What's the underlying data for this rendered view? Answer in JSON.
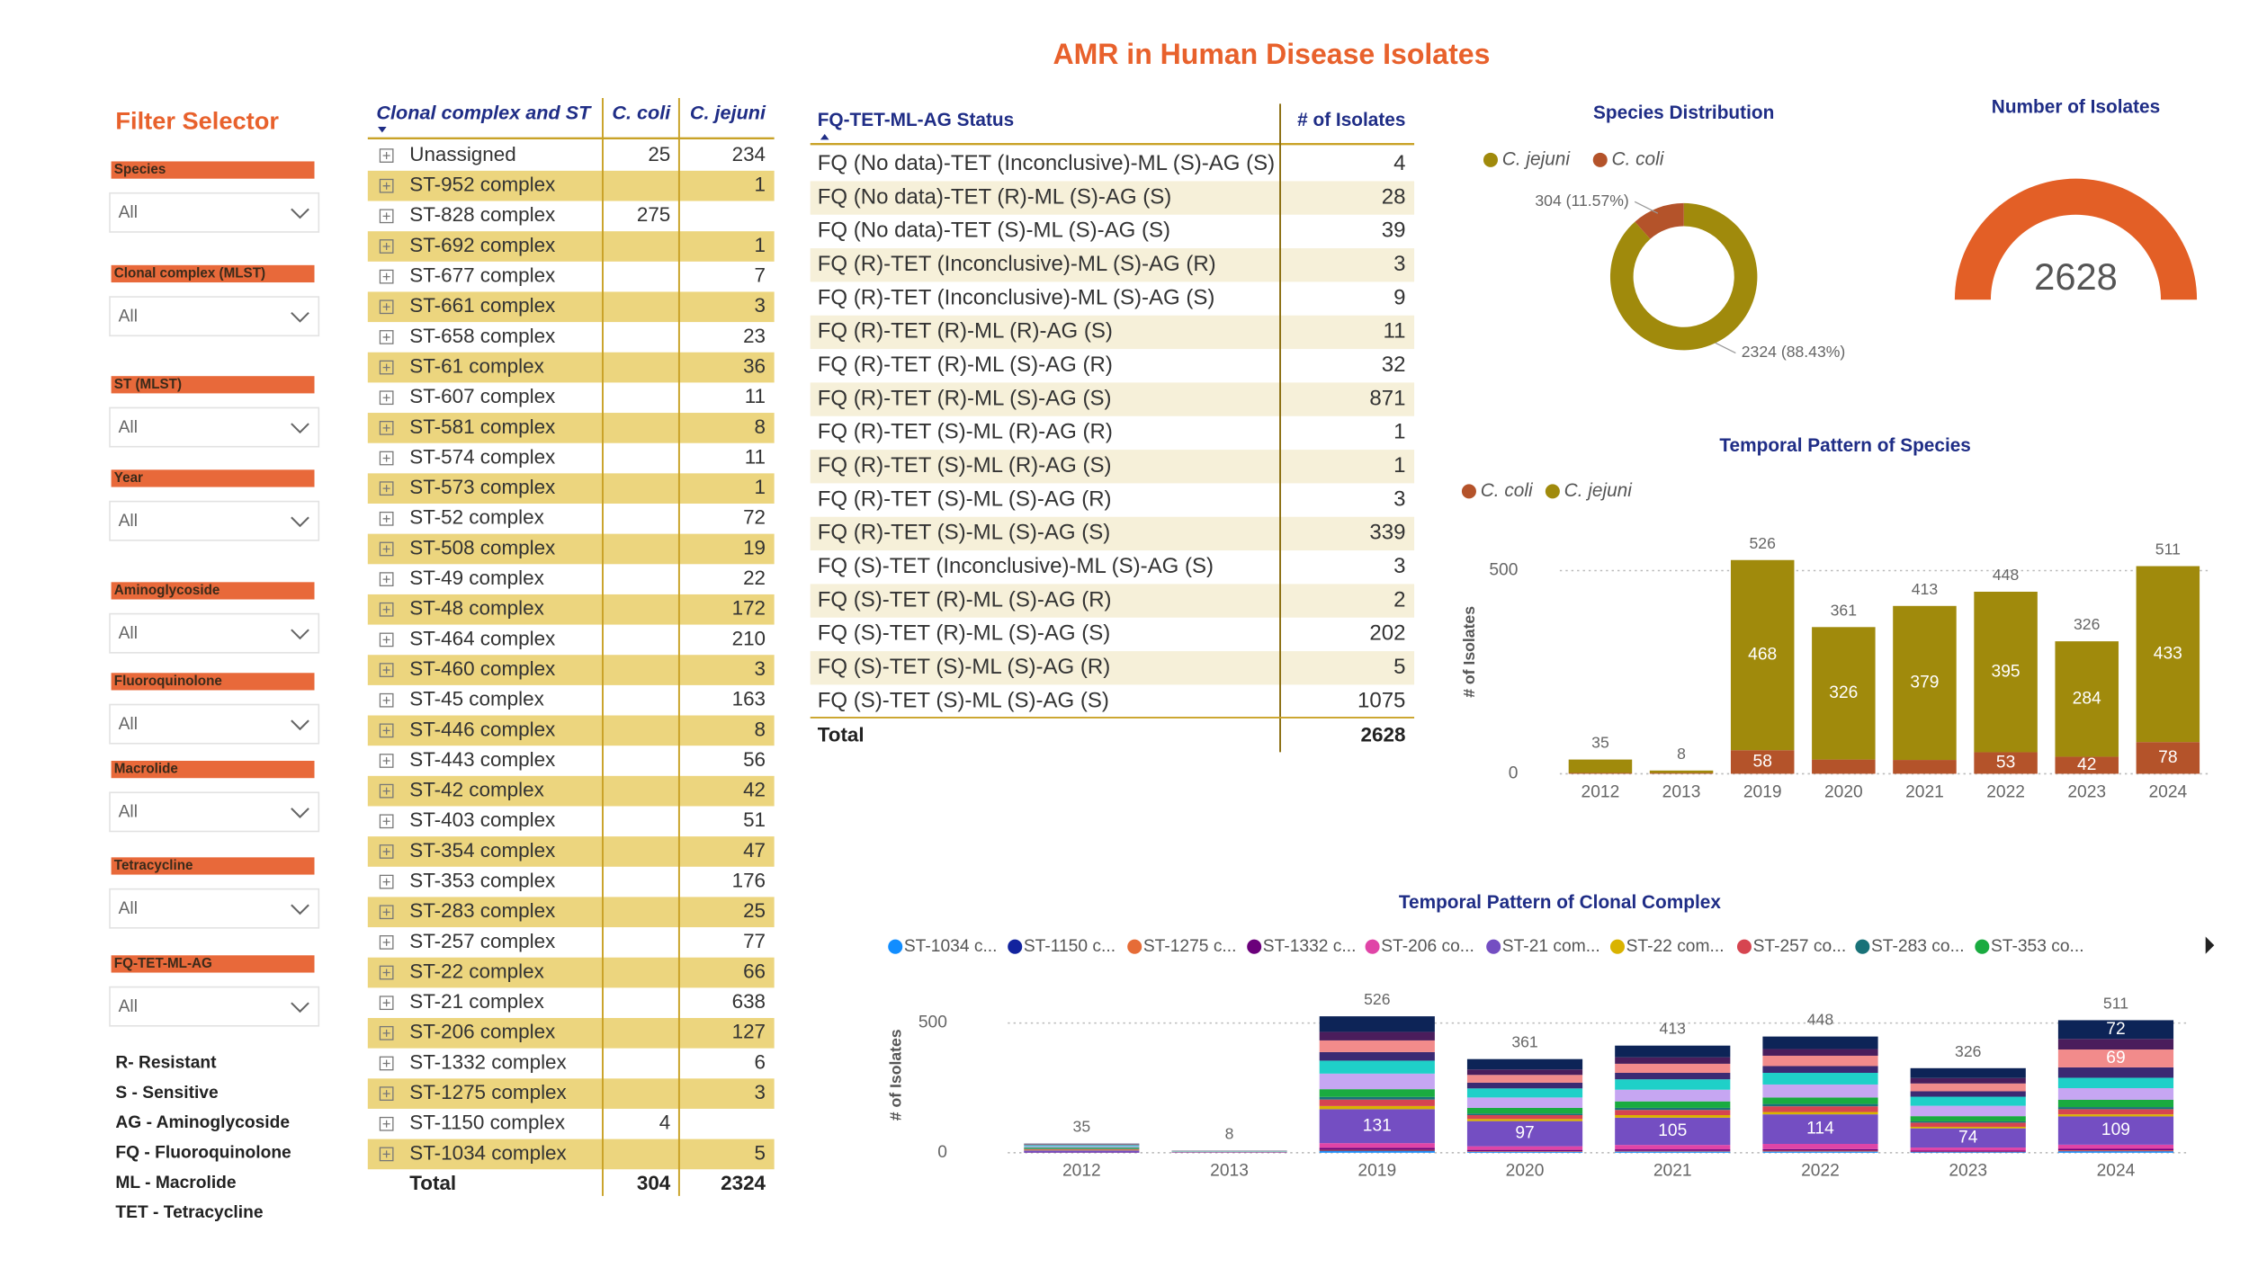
{
  "title": "AMR in Human Disease Isolates",
  "filter_panel": {
    "title": "Filter Selector",
    "filters": [
      {
        "label": "Species",
        "value": "All"
      },
      {
        "label": "Clonal complex (MLST)",
        "value": "All"
      },
      {
        "label": "ST (MLST)",
        "value": "All"
      },
      {
        "label": "Year",
        "value": "All"
      },
      {
        "label": "Aminoglycoside",
        "value": "All"
      },
      {
        "label": "Fluoroquinolone",
        "value": "All"
      },
      {
        "label": "Macrolide",
        "value": "All"
      },
      {
        "label": "Tetracycline",
        "value": "All"
      },
      {
        "label": "FQ-TET-ML-AG",
        "value": "All"
      }
    ],
    "notes": [
      "R- Resistant",
      "S - Sensitive",
      "AG - Aminoglycoside",
      "FQ - Fluoroquinolone",
      "ML - Macrolide",
      "TET - Tetracycline"
    ]
  },
  "cc_table": {
    "columns": [
      "Clonal complex and ST",
      "C. coli",
      "C. jejuni"
    ],
    "rows": [
      [
        "Unassigned",
        25,
        234
      ],
      [
        "ST-952 complex",
        null,
        1
      ],
      [
        "ST-828 complex",
        275,
        null
      ],
      [
        "ST-692 complex",
        null,
        1
      ],
      [
        "ST-677 complex",
        null,
        7
      ],
      [
        "ST-661 complex",
        null,
        3
      ],
      [
        "ST-658 complex",
        null,
        23
      ],
      [
        "ST-61 complex",
        null,
        36
      ],
      [
        "ST-607 complex",
        null,
        11
      ],
      [
        "ST-581 complex",
        null,
        8
      ],
      [
        "ST-574 complex",
        null,
        11
      ],
      [
        "ST-573 complex",
        null,
        1
      ],
      [
        "ST-52 complex",
        null,
        72
      ],
      [
        "ST-508 complex",
        null,
        19
      ],
      [
        "ST-49 complex",
        null,
        22
      ],
      [
        "ST-48 complex",
        null,
        172
      ],
      [
        "ST-464 complex",
        null,
        210
      ],
      [
        "ST-460 complex",
        null,
        3
      ],
      [
        "ST-45 complex",
        null,
        163
      ],
      [
        "ST-446 complex",
        null,
        8
      ],
      [
        "ST-443 complex",
        null,
        56
      ],
      [
        "ST-42 complex",
        null,
        42
      ],
      [
        "ST-403 complex",
        null,
        51
      ],
      [
        "ST-354 complex",
        null,
        47
      ],
      [
        "ST-353 complex",
        null,
        176
      ],
      [
        "ST-283 complex",
        null,
        25
      ],
      [
        "ST-257 complex",
        null,
        77
      ],
      [
        "ST-22 complex",
        null,
        66
      ],
      [
        "ST-21 complex",
        null,
        638
      ],
      [
        "ST-206 complex",
        null,
        127
      ],
      [
        "ST-1332 complex",
        null,
        6
      ],
      [
        "ST-1275 complex",
        null,
        3
      ],
      [
        "ST-1150 complex",
        4,
        null
      ],
      [
        "ST-1034 complex",
        null,
        5
      ]
    ],
    "total": [
      "Total",
      304,
      2324
    ]
  },
  "status_table": {
    "columns": [
      "FQ-TET-ML-AG Status",
      "# of Isolates"
    ],
    "rows": [
      [
        "FQ (No data)-TET (Inconclusive)-ML (S)-AG (S)",
        4
      ],
      [
        "FQ (No data)-TET (R)-ML (S)-AG (S)",
        28
      ],
      [
        "FQ (No data)-TET (S)-ML (S)-AG (S)",
        39
      ],
      [
        "FQ (R)-TET (Inconclusive)-ML (S)-AG (R)",
        3
      ],
      [
        "FQ (R)-TET (Inconclusive)-ML (S)-AG (S)",
        9
      ],
      [
        "FQ (R)-TET (R)-ML (R)-AG (S)",
        11
      ],
      [
        "FQ (R)-TET (R)-ML (S)-AG (R)",
        32
      ],
      [
        "FQ (R)-TET (R)-ML (S)-AG (S)",
        871
      ],
      [
        "FQ (R)-TET (S)-ML (R)-AG (R)",
        1
      ],
      [
        "FQ (R)-TET (S)-ML (R)-AG (S)",
        1
      ],
      [
        "FQ (R)-TET (S)-ML (S)-AG (R)",
        3
      ],
      [
        "FQ (R)-TET (S)-ML (S)-AG (S)",
        339
      ],
      [
        "FQ (S)-TET (Inconclusive)-ML (S)-AG (S)",
        3
      ],
      [
        "FQ (S)-TET (R)-ML (S)-AG (R)",
        2
      ],
      [
        "FQ (S)-TET (R)-ML (S)-AG (S)",
        202
      ],
      [
        "FQ (S)-TET (S)-ML (S)-AG (R)",
        5
      ],
      [
        "FQ (S)-TET (S)-ML (S)-AG (S)",
        1075
      ]
    ],
    "total": [
      "Total",
      2628
    ]
  },
  "chart_data": [
    {
      "type": "pie",
      "title": "Species Distribution",
      "donut": true,
      "categories": [
        "C. jejuni",
        "C. coli"
      ],
      "values": [
        2324,
        304
      ],
      "value_labels": [
        "2324 (88.43%)",
        "304 (11.57%)"
      ],
      "colors": [
        "#a08a0c",
        "#b4532a"
      ]
    },
    {
      "type": "gauge",
      "title": "Number of Isolates",
      "value": 2628,
      "color": "#e35f26"
    },
    {
      "type": "stacked-bar",
      "title": "Temporal Pattern of Species",
      "y_label": "# of Isolates",
      "categories": [
        "2012",
        "2013",
        "2019",
        "2020",
        "2021",
        "2022",
        "2023",
        "2024"
      ],
      "series": [
        {
          "name": "C. coli",
          "color": "#b4532a",
          "values": [
            2,
            2,
            58,
            35,
            34,
            53,
            42,
            78
          ]
        },
        {
          "name": "C. jejuni",
          "color": "#a08a0c",
          "values": [
            33,
            6,
            468,
            326,
            379,
            395,
            284,
            433
          ]
        }
      ],
      "totals": [
        35,
        8,
        526,
        361,
        413,
        448,
        326,
        511
      ],
      "ylim": [
        0,
        600
      ],
      "yticks": [
        0,
        500
      ],
      "grid": true
    },
    {
      "type": "stacked-bar",
      "title": "Temporal Pattern of Clonal Complex",
      "y_label": "# of Isolates",
      "categories": [
        "2012",
        "2013",
        "2019",
        "2020",
        "2021",
        "2022",
        "2023",
        "2024"
      ],
      "series": [
        {
          "name": "ST-1034 c...",
          "color": "#118dff",
          "values": [
            0,
            0,
            6,
            3,
            4,
            4,
            2,
            5
          ]
        },
        {
          "name": "ST-1150 c...",
          "color": "#12239e",
          "values": [
            0,
            0,
            2,
            1,
            1,
            1,
            1,
            1
          ]
        },
        {
          "name": "ST-1275 c...",
          "color": "#e66c37",
          "values": [
            0,
            0,
            3,
            2,
            2,
            3,
            1,
            3
          ]
        },
        {
          "name": "ST-1332 c...",
          "color": "#6b007b",
          "values": [
            1,
            0,
            8,
            5,
            6,
            6,
            4,
            6
          ]
        },
        {
          "name": "ST-206 co...",
          "color": "#e044a7",
          "values": [
            0,
            0,
            18,
            14,
            17,
            20,
            12,
            16
          ]
        },
        {
          "name": "ST-21 com...",
          "color": "#744ec2",
          "values": [
            8,
            2,
            131,
            97,
            105,
            114,
            74,
            109
          ]
        },
        {
          "name": "ST-22 com...",
          "color": "#d9b300",
          "values": [
            2,
            0,
            12,
            8,
            10,
            9,
            6,
            8
          ]
        },
        {
          "name": "ST-257 co...",
          "color": "#d64550",
          "values": [
            3,
            1,
            25,
            15,
            20,
            22,
            16,
            20
          ]
        },
        {
          "name": "ST-283 co...",
          "color": "#197278",
          "values": [
            2,
            0,
            10,
            6,
            8,
            9,
            5,
            8
          ]
        },
        {
          "name": "ST-353 co...",
          "color": "#1aab40",
          "values": [
            4,
            1,
            30,
            22,
            25,
            25,
            20,
            28
          ]
        },
        {
          "name": null,
          "color": "#c6a6f2",
          "values": [
            5,
            1,
            60,
            40,
            45,
            50,
            40,
            45
          ]
        },
        {
          "name": null,
          "color": "#1fd0c8",
          "values": [
            4,
            1,
            50,
            35,
            40,
            45,
            35,
            40
          ]
        },
        {
          "name": null,
          "color": "#3b2a73",
          "values": [
            1,
            0,
            33,
            22,
            25,
            26,
            21,
            40
          ]
        },
        {
          "name": null,
          "color": "#f28b8b",
          "values": [
            2,
            1,
            45,
            30,
            35,
            40,
            30,
            69
          ]
        },
        {
          "name": null,
          "color": "#4a1d5c",
          "values": [
            1,
            0,
            33,
            21,
            25,
            26,
            21,
            41
          ]
        },
        {
          "name": null,
          "color": "#0d2457",
          "values": [
            2,
            1,
            60,
            40,
            45,
            48,
            38,
            72
          ]
        }
      ],
      "totals": [
        35,
        8,
        526,
        361,
        413,
        448,
        326,
        511
      ],
      "ylim": [
        0,
        600
      ],
      "yticks": [
        0,
        500
      ],
      "grid": true
    }
  ]
}
